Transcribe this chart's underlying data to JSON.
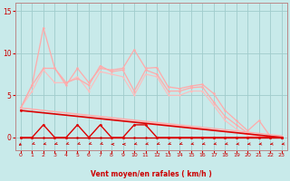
{
  "background_color": "#c8eaea",
  "grid_color": "#a0cccc",
  "x_label": "Vent moyen/en rafales ( km/h )",
  "ylim": [
    -1.5,
    16
  ],
  "xlim": [
    -0.5,
    23.5
  ],
  "yticks": [
    0,
    5,
    10,
    15
  ],
  "xticks": [
    0,
    1,
    2,
    3,
    4,
    5,
    6,
    7,
    8,
    9,
    10,
    11,
    12,
    13,
    14,
    15,
    16,
    17,
    18,
    19,
    20,
    21,
    22,
    23
  ],
  "line_top": {
    "x": [
      0,
      1,
      2,
      3,
      4,
      5,
      6,
      7,
      8,
      9,
      10,
      11,
      12,
      13,
      14,
      15,
      16,
      17,
      18,
      19,
      20,
      21,
      22,
      23
    ],
    "y": [
      3.5,
      6.2,
      13.0,
      8.2,
      6.2,
      8.2,
      6.5,
      8.2,
      8.0,
      8.2,
      10.4,
      8.2,
      8.3,
      6.0,
      5.8,
      6.1,
      6.3,
      5.2,
      3.2,
      2.0,
      0.8,
      2.0,
      0.1,
      0.1
    ],
    "color": "#ffaaaa",
    "lw": 0.9,
    "marker": "o",
    "ms": 1.8
  },
  "line_mid1": {
    "x": [
      0,
      1,
      2,
      3,
      4,
      5,
      6,
      7,
      8,
      9,
      10,
      11,
      12,
      13,
      14,
      15,
      16,
      17,
      18,
      19,
      20,
      21,
      22,
      23
    ],
    "y": [
      3.5,
      6.2,
      8.2,
      8.2,
      6.5,
      7.0,
      6.2,
      8.5,
      7.8,
      8.0,
      5.5,
      8.0,
      7.5,
      5.5,
      5.5,
      5.9,
      6.0,
      4.2,
      2.5,
      1.5,
      0.5,
      0.1,
      0.0,
      0.0
    ],
    "color": "#ffaaaa",
    "lw": 0.9,
    "marker": "o",
    "ms": 1.8
  },
  "line_mid2": {
    "x": [
      0,
      1,
      2,
      3,
      4,
      5,
      6,
      7,
      8,
      9,
      10,
      11,
      12,
      13,
      14,
      15,
      16,
      17,
      18,
      19,
      20,
      21,
      22,
      23
    ],
    "y": [
      3.5,
      5.5,
      8.0,
      6.5,
      6.5,
      7.2,
      5.5,
      7.8,
      7.5,
      7.2,
      5.0,
      7.5,
      7.2,
      5.0,
      5.0,
      5.5,
      5.5,
      3.8,
      2.0,
      1.0,
      0.2,
      0.0,
      0.0,
      0.0
    ],
    "color": "#ffbbbb",
    "lw": 0.8,
    "marker": "o",
    "ms": 1.5
  },
  "line_trend1": {
    "x": [
      0,
      23
    ],
    "y": [
      3.5,
      0.2
    ],
    "color": "#ffaaaa",
    "lw": 0.9,
    "marker": null,
    "ms": 0
  },
  "line_trend2": {
    "x": [
      0,
      23
    ],
    "y": [
      3.5,
      0.0
    ],
    "color": "#ffbbbb",
    "lw": 0.8,
    "marker": null,
    "ms": 0
  },
  "line_dark_zigzag": {
    "x": [
      0,
      1,
      2,
      3,
      4,
      5,
      6,
      7,
      8,
      9,
      10,
      11,
      12,
      13,
      14,
      15,
      16,
      17,
      18,
      19,
      20,
      21,
      22,
      23
    ],
    "y": [
      0.0,
      0.0,
      1.5,
      0.0,
      0.0,
      1.5,
      0.0,
      1.5,
      0.0,
      0.0,
      1.5,
      1.5,
      0.0,
      0.0,
      0.0,
      0.0,
      0.0,
      0.0,
      0.0,
      0.0,
      0.0,
      0.0,
      0.0,
      0.0
    ],
    "color": "#dd0000",
    "lw": 1.0,
    "marker": "o",
    "ms": 2.0
  },
  "line_dark_trend": {
    "x": [
      0,
      23
    ],
    "y": [
      3.2,
      0.0
    ],
    "color": "#dd0000",
    "lw": 1.2,
    "marker": "o",
    "ms": 2.0
  },
  "line_baseline": {
    "x": [
      0,
      1,
      2,
      3,
      4,
      5,
      6,
      7,
      8,
      9,
      10,
      11,
      12,
      13,
      14,
      15,
      16,
      17,
      18,
      19,
      20,
      21,
      22,
      23
    ],
    "y": [
      0.0,
      0.0,
      0.0,
      0.0,
      0.0,
      0.0,
      0.0,
      0.0,
      0.0,
      0.0,
      0.0,
      0.0,
      0.0,
      0.0,
      0.0,
      0.0,
      0.0,
      0.0,
      0.0,
      0.0,
      0.0,
      0.0,
      0.0,
      0.0
    ],
    "color": "#cc0000",
    "lw": 1.0,
    "marker": "o",
    "ms": 1.8
  },
  "arrow_color": "#cc0000",
  "arrow_angles_deg": [
    225,
    245,
    255,
    250,
    245,
    245,
    245,
    245,
    270,
    270,
    255,
    255,
    250,
    250,
    250,
    255,
    255,
    255,
    255,
    260,
    260,
    260,
    260,
    260
  ]
}
